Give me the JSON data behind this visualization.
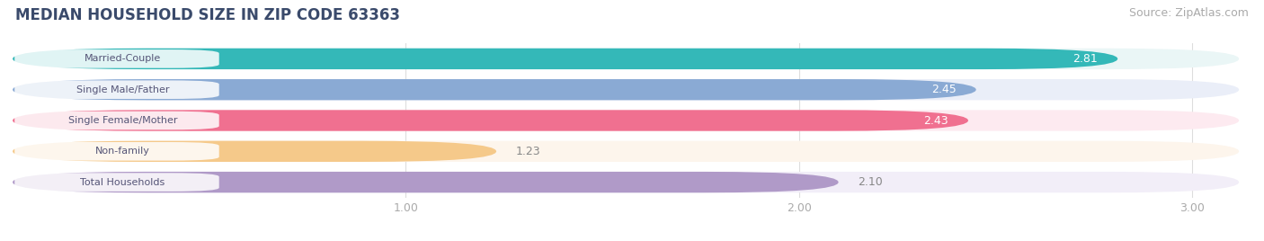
{
  "title": "MEDIAN HOUSEHOLD SIZE IN ZIP CODE 63363",
  "source": "Source: ZipAtlas.com",
  "categories": [
    "Married-Couple",
    "Single Male/Father",
    "Single Female/Mother",
    "Non-family",
    "Total Households"
  ],
  "values": [
    2.81,
    2.45,
    2.43,
    1.23,
    2.1
  ],
  "bar_colors": [
    "#34b8b8",
    "#8aaad4",
    "#f07090",
    "#f5c98a",
    "#b09ac8"
  ],
  "bar_bg_colors": [
    "#eaf6f6",
    "#eaeef8",
    "#fdeaf0",
    "#fdf5ec",
    "#f2eef8"
  ],
  "label_text_colors": [
    "white",
    "white",
    "white",
    "white",
    "white"
  ],
  "value_colors": [
    "white",
    "white",
    "white",
    "#888888",
    "#888888"
  ],
  "xlim": [
    0,
    3.15
  ],
  "xticks": [
    1.0,
    2.0,
    3.0
  ],
  "title_fontsize": 12,
  "source_fontsize": 9,
  "label_fontsize": 8,
  "value_fontsize": 9,
  "tick_fontsize": 9,
  "background_color": "#ffffff",
  "title_color": "#3a4a6b",
  "source_color": "#aaaaaa",
  "tick_color": "#aaaaaa",
  "grid_color": "#dddddd"
}
